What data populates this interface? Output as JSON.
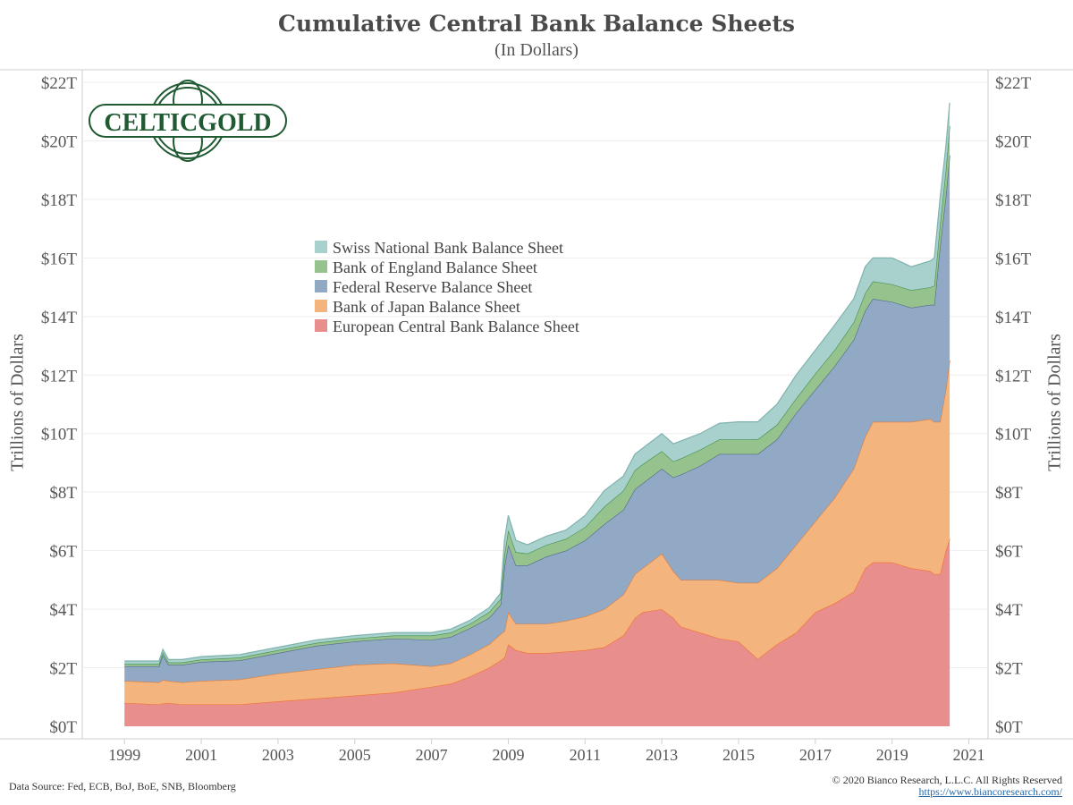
{
  "header": {
    "title": "Cumulative Central Bank Balance Sheets",
    "subtitle": "(In Dollars)"
  },
  "logo": {
    "text": "CELTICGOLD",
    "color": "#1f5a32"
  },
  "footer": {
    "source": "Data Source: Fed, ECB, BoJ, BoE, SNB, Bloomberg",
    "copyright": "© 2020 Bianco Research, L.L.C. All Rights Reserved",
    "url": "https://www.biancoresearch.com/"
  },
  "chart_data": {
    "type": "area",
    "stacked": true,
    "title": "Cumulative Central Bank Balance Sheets",
    "subtitle": "(In Dollars)",
    "ylabel": "Trillions of Dollars",
    "ylabel_right": "Trillions of Dollars",
    "xlabel": "",
    "xlim": [
      1997.9,
      2021.5
    ],
    "ylim": [
      0,
      22
    ],
    "x_ticks": [
      1999,
      2001,
      2003,
      2005,
      2007,
      2009,
      2011,
      2013,
      2015,
      2017,
      2019,
      2021
    ],
    "y_ticks": [
      0,
      2,
      4,
      6,
      8,
      10,
      12,
      14,
      16,
      18,
      20,
      22
    ],
    "y_tick_labels": [
      "$0T",
      "$2T",
      "$4T",
      "$6T",
      "$8T",
      "$10T",
      "$12T",
      "$14T",
      "$16T",
      "$18T",
      "$20T",
      "$22T"
    ],
    "grid": "horizontal",
    "legend_position": "center-left",
    "x": [
      1999.0,
      1999.9,
      2000.0,
      2000.15,
      2000.5,
      2001.0,
      2002.0,
      2003.0,
      2004.0,
      2005.0,
      2006.0,
      2007.0,
      2007.5,
      2008.0,
      2008.5,
      2008.8,
      2008.9,
      2009.0,
      2009.2,
      2009.5,
      2010.0,
      2010.5,
      2011.0,
      2011.5,
      2012.0,
      2012.3,
      2012.5,
      2013.0,
      2013.3,
      2013.5,
      2014.0,
      2014.5,
      2015.0,
      2015.5,
      2016.0,
      2016.5,
      2017.0,
      2017.5,
      2018.0,
      2018.3,
      2018.5,
      2019.0,
      2019.5,
      2020.0,
      2020.1,
      2020.25,
      2020.4,
      2020.5
    ],
    "series": [
      {
        "name": "European Central Bank Balance Sheet",
        "color": "#e88f8d",
        "edge": "#f2702f",
        "values": [
          0.8,
          0.75,
          0.78,
          0.8,
          0.75,
          0.75,
          0.75,
          0.85,
          0.95,
          1.05,
          1.15,
          1.35,
          1.45,
          1.7,
          2.0,
          2.25,
          2.35,
          2.8,
          2.6,
          2.5,
          2.5,
          2.55,
          2.6,
          2.7,
          3.1,
          3.7,
          3.9,
          4.0,
          3.7,
          3.4,
          3.2,
          3.0,
          2.9,
          2.3,
          2.8,
          3.2,
          3.9,
          4.2,
          4.6,
          5.4,
          5.6,
          5.6,
          5.4,
          5.3,
          5.2,
          5.2,
          6.0,
          6.4
        ]
      },
      {
        "name": "Bank of Japan Balance Sheet",
        "color": "#f3b47e",
        "edge": "#e07d3a",
        "values": [
          0.75,
          0.75,
          0.8,
          0.75,
          0.75,
          0.8,
          0.85,
          0.95,
          1.0,
          1.05,
          1.0,
          0.7,
          0.7,
          0.75,
          0.8,
          0.9,
          0.9,
          1.1,
          0.9,
          1.0,
          1.0,
          1.05,
          1.15,
          1.3,
          1.4,
          1.5,
          1.5,
          1.9,
          1.6,
          1.6,
          1.8,
          2.0,
          2.0,
          2.6,
          2.6,
          3.0,
          3.1,
          3.6,
          4.2,
          4.5,
          4.8,
          4.8,
          5.0,
          5.2,
          5.2,
          5.2,
          5.5,
          6.1
        ]
      },
      {
        "name": "Federal Reserve Balance Sheet",
        "color": "#92a9c6",
        "edge": "#4f6a86",
        "values": [
          0.5,
          0.55,
          0.85,
          0.55,
          0.6,
          0.65,
          0.65,
          0.7,
          0.8,
          0.8,
          0.85,
          0.9,
          0.9,
          0.9,
          0.9,
          1.0,
          2.2,
          2.3,
          2.0,
          2.0,
          2.3,
          2.4,
          2.6,
          2.9,
          2.9,
          2.9,
          2.9,
          2.9,
          3.2,
          3.6,
          3.9,
          4.3,
          4.4,
          4.4,
          4.4,
          4.5,
          4.5,
          4.5,
          4.4,
          4.3,
          4.2,
          4.1,
          3.9,
          3.9,
          4.0,
          6.0,
          6.6,
          7.0
        ]
      },
      {
        "name": "Bank of England Balance Sheet",
        "color": "#96c28d",
        "edge": "#3e8f4e",
        "values": [
          0.08,
          0.08,
          0.1,
          0.08,
          0.08,
          0.08,
          0.1,
          0.1,
          0.1,
          0.1,
          0.1,
          0.15,
          0.15,
          0.15,
          0.2,
          0.2,
          0.4,
          0.5,
          0.45,
          0.4,
          0.4,
          0.4,
          0.45,
          0.6,
          0.65,
          0.65,
          0.65,
          0.6,
          0.55,
          0.55,
          0.55,
          0.5,
          0.5,
          0.5,
          0.5,
          0.5,
          0.55,
          0.55,
          0.6,
          0.6,
          0.6,
          0.6,
          0.6,
          0.6,
          0.65,
          0.75,
          0.9,
          1.0
        ]
      },
      {
        "name": "Swiss National Bank Balance Sheet",
        "color": "#a8d0cc",
        "edge": "#7fb3ad",
        "values": [
          0.1,
          0.1,
          0.1,
          0.1,
          0.1,
          0.1,
          0.1,
          0.1,
          0.1,
          0.1,
          0.1,
          0.1,
          0.12,
          0.12,
          0.15,
          0.2,
          0.5,
          0.5,
          0.4,
          0.3,
          0.3,
          0.3,
          0.4,
          0.55,
          0.5,
          0.55,
          0.55,
          0.6,
          0.6,
          0.6,
          0.55,
          0.55,
          0.6,
          0.6,
          0.7,
          0.8,
          0.8,
          0.85,
          0.8,
          0.9,
          0.8,
          0.9,
          0.8,
          0.9,
          0.95,
          0.9,
          0.8,
          0.8
        ]
      }
    ]
  }
}
